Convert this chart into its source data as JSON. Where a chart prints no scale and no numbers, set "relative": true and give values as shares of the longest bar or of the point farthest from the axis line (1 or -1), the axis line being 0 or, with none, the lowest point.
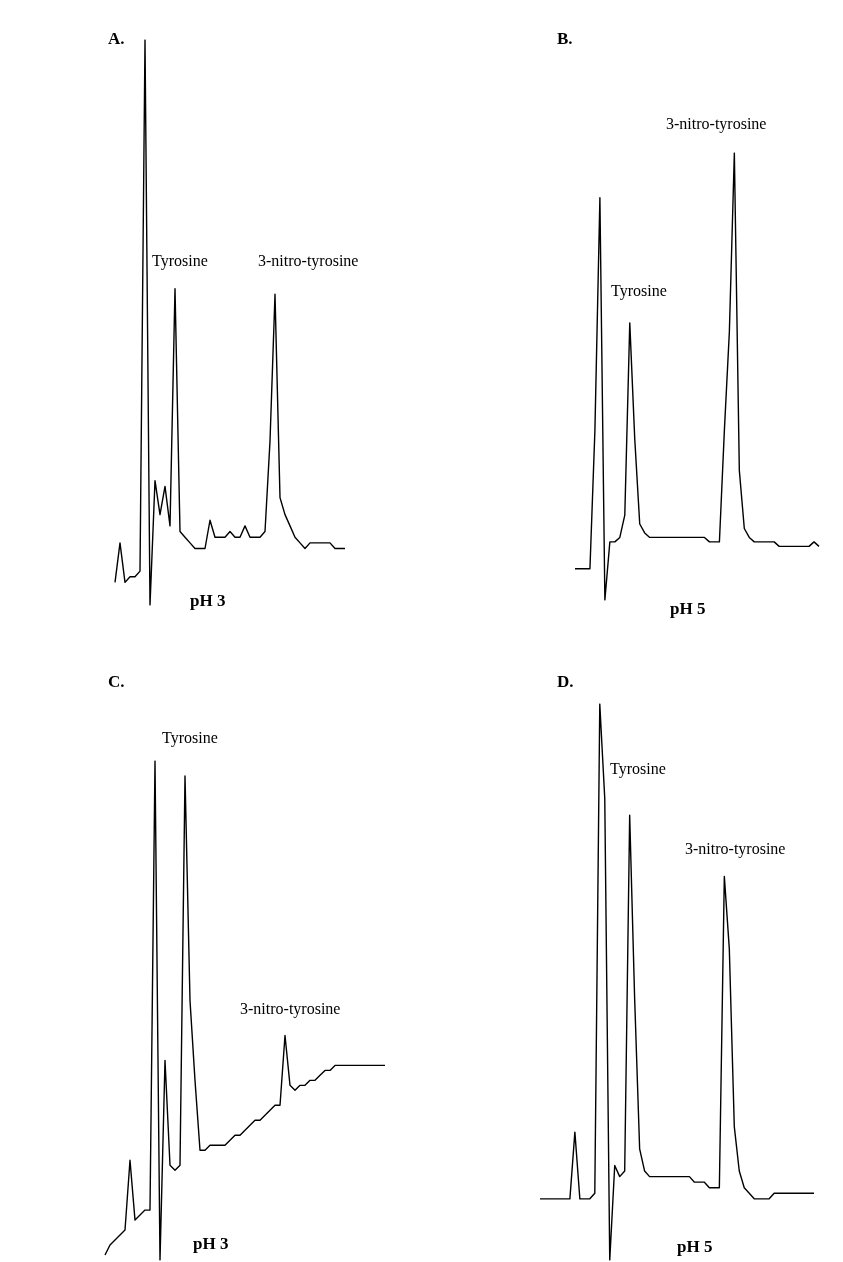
{
  "chart_data": [
    {
      "type": "line",
      "title": "A.",
      "xlabel": "pH 3",
      "relative": true,
      "marker": "none",
      "annotations": [
        "Tyrosine",
        "3-nitro-tyrosine"
      ],
      "categories": [
        null,
        null,
        null,
        null,
        null,
        null,
        null,
        null,
        null,
        null,
        null,
        null,
        null,
        null,
        null,
        null,
        null,
        null,
        null,
        null,
        null,
        null,
        null,
        null,
        null,
        null,
        null,
        null,
        null,
        null,
        null,
        null,
        null,
        null,
        null,
        null,
        null,
        null,
        null,
        null,
        null,
        null,
        null,
        null,
        null,
        null,
        null
      ],
      "series": [
        {
          "color": "#000000",
          "values": [
            0.04,
            0.11,
            0.04,
            0.05,
            0.05,
            0.06,
            1,
            0,
            0.22,
            0.16,
            0.21,
            0.14,
            0.56,
            0.13,
            0.12,
            0.11,
            0.1,
            0.1,
            0.1,
            0.15,
            0.12,
            0.12,
            0.12,
            0.13,
            0.12,
            0.12,
            0.14,
            0.12,
            0.12,
            0.12,
            0.13,
            0.29,
            0.55,
            0.19,
            0.16,
            0.14,
            0.12,
            0.11,
            0.1,
            0.11,
            0.11,
            0.11,
            0.11,
            0.11,
            0.1,
            0.1,
            0.1
          ]
        }
      ]
    },
    {
      "type": "line",
      "title": "B.",
      "xlabel": "pH 5",
      "relative": true,
      "marker": "none",
      "annotations": [
        "Tyrosine",
        "3-nitro-tyrosine"
      ],
      "categories": [
        null,
        null,
        null,
        null,
        null,
        null,
        null,
        null,
        null,
        null,
        null,
        null,
        null,
        null,
        null,
        null,
        null,
        null,
        null,
        null,
        null,
        null,
        null,
        null,
        null,
        null,
        null,
        null,
        null,
        null,
        null,
        null,
        null,
        null,
        null,
        null,
        null,
        null,
        null,
        null,
        null,
        null,
        null,
        null,
        null,
        null,
        null,
        null,
        null,
        null
      ],
      "series": [
        {
          "color": "#000000",
          "values": [
            0.07,
            0.07,
            0.07,
            0.07,
            0.38,
            0.9,
            0,
            0.13,
            0.13,
            0.14,
            0.19,
            0.62,
            0.36,
            0.17,
            0.15,
            0.14,
            0.14,
            0.14,
            0.14,
            0.14,
            0.14,
            0.14,
            0.14,
            0.14,
            0.14,
            0.14,
            0.14,
            0.13,
            0.13,
            0.13,
            0.38,
            0.6,
            1,
            0.29,
            0.16,
            0.14,
            0.13,
            0.13,
            0.13,
            0.13,
            0.13,
            0.12,
            0.12,
            0.12,
            0.12,
            0.12,
            0.12,
            0.12,
            0.13,
            0.12
          ]
        }
      ]
    },
    {
      "type": "line",
      "title": "C.",
      "xlabel": "pH 3",
      "relative": true,
      "marker": "none",
      "annotations": [
        "Tyrosine",
        "3-nitro-tyrosine"
      ],
      "categories": [
        null,
        null,
        null,
        null,
        null,
        null,
        null,
        null,
        null,
        null,
        null,
        null,
        null,
        null,
        null,
        null,
        null,
        null,
        null,
        null,
        null,
        null,
        null,
        null,
        null,
        null,
        null,
        null,
        null,
        null,
        null,
        null,
        null,
        null,
        null,
        null,
        null,
        null,
        null,
        null,
        null,
        null,
        null,
        null,
        null,
        null,
        null,
        null,
        null,
        null,
        null,
        null,
        null,
        null,
        null,
        null,
        null
      ],
      "series": [
        {
          "color": "#000000",
          "values": [
            0.01,
            0.03,
            0.04,
            0.05,
            0.06,
            0.2,
            0.08,
            0.09,
            0.1,
            0.1,
            1,
            0,
            0.4,
            0.19,
            0.18,
            0.19,
            0.97,
            0.52,
            0.36,
            0.22,
            0.22,
            0.23,
            0.23,
            0.23,
            0.23,
            0.24,
            0.25,
            0.25,
            0.26,
            0.27,
            0.28,
            0.28,
            0.29,
            0.3,
            0.31,
            0.31,
            0.45,
            0.35,
            0.34,
            0.35,
            0.35,
            0.36,
            0.36,
            0.37,
            0.38,
            0.38,
            0.39,
            0.39,
            0.39,
            0.39,
            0.39,
            0.39,
            0.39,
            0.39,
            0.39,
            0.39,
            0.39
          ]
        }
      ]
    },
    {
      "type": "line",
      "title": "D.",
      "xlabel": "pH 5",
      "relative": true,
      "marker": "none",
      "annotations": [
        "Tyrosine",
        "3-nitro-tyrosine"
      ],
      "categories": [
        null,
        null,
        null,
        null,
        null,
        null,
        null,
        null,
        null,
        null,
        null,
        null,
        null,
        null,
        null,
        null,
        null,
        null,
        null,
        null,
        null,
        null,
        null,
        null,
        null,
        null,
        null,
        null,
        null,
        null,
        null,
        null,
        null,
        null,
        null,
        null,
        null,
        null,
        null,
        null,
        null,
        null,
        null,
        null,
        null,
        null,
        null,
        null,
        null,
        null,
        null,
        null,
        null,
        null,
        null,
        null
      ],
      "series": [
        {
          "color": "#000000",
          "values": [
            0.11,
            0.11,
            0.11,
            0.11,
            0.11,
            0.11,
            0.11,
            0.23,
            0.11,
            0.11,
            0.11,
            0.12,
            1,
            0.83,
            0,
            0.17,
            0.15,
            0.16,
            0.8,
            0.47,
            0.2,
            0.16,
            0.15,
            0.15,
            0.15,
            0.15,
            0.15,
            0.15,
            0.15,
            0.15,
            0.15,
            0.14,
            0.14,
            0.14,
            0.13,
            0.13,
            0.13,
            0.69,
            0.56,
            0.24,
            0.16,
            0.13,
            0.12,
            0.11,
            0.11,
            0.11,
            0.11,
            0.12,
            0.12,
            0.12,
            0.12,
            0.12,
            0.12,
            0.12,
            0.12,
            0.12
          ]
        }
      ]
    }
  ]
}
